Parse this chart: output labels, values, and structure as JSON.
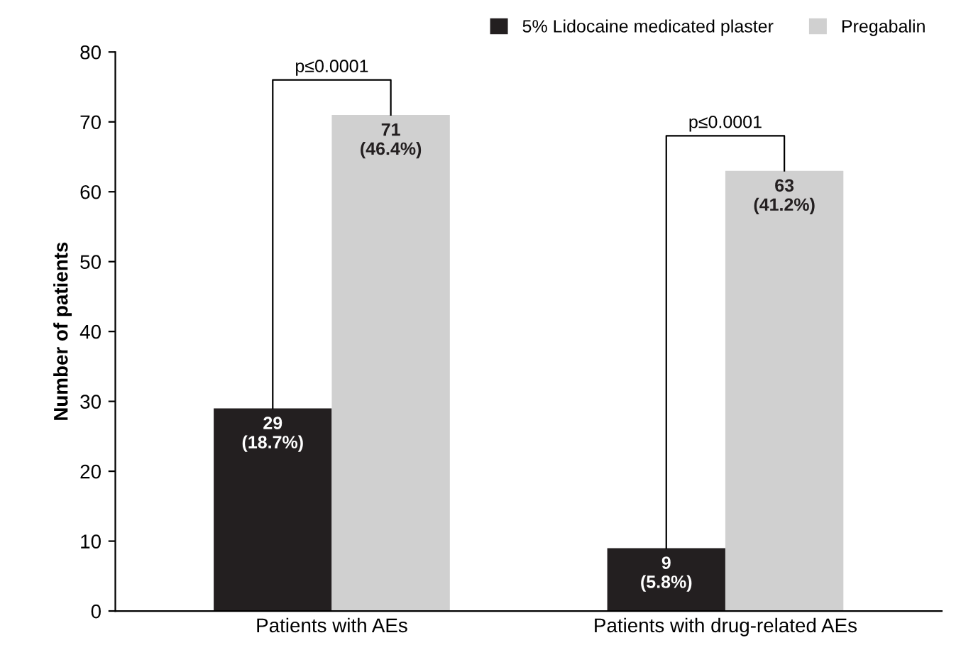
{
  "chart_data": {
    "type": "bar",
    "ylabel": "Number of patients",
    "categories": [
      "Patients with AEs",
      "Patients with drug-related AEs"
    ],
    "series": [
      {
        "name": "5% Lidocaine medicated plaster",
        "color": "#231f20",
        "values": [
          29,
          9
        ],
        "value_labels": [
          "29\n(18.7%)",
          "9\n(5.8%)"
        ]
      },
      {
        "name": "Pregabalin",
        "color": "#d0d0d0",
        "values": [
          71,
          63
        ],
        "value_labels": [
          "71\n(46.4%)",
          "63\n(41.2%)"
        ]
      }
    ],
    "ylim": [
      0,
      80
    ],
    "yticks": [
      0,
      10,
      20,
      30,
      40,
      50,
      60,
      70,
      80
    ],
    "grid": false,
    "legend": "top right",
    "annotations": [
      "p≤0.0001",
      "p≤0.0001"
    ]
  }
}
